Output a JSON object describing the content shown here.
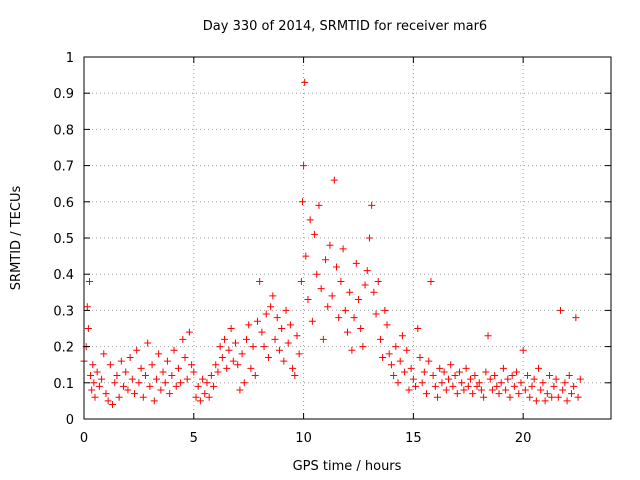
{
  "chart_data": {
    "type": "scatter",
    "title": "Day 330 of 2014, SRMTID for receiver mar6",
    "xlabel": "GPS time / hours",
    "ylabel": "SRMTID / TECUs",
    "xlim": [
      0,
      24
    ],
    "ylim": [
      0,
      1
    ],
    "xticks": [
      0,
      5,
      10,
      15,
      20
    ],
    "xtick_labels": [
      "0",
      "5",
      "10",
      "15",
      "20"
    ],
    "yticks": [
      0,
      0.1,
      0.2,
      0.3,
      0.4,
      0.5,
      0.6,
      0.7,
      0.8,
      0.9,
      1
    ],
    "ytick_labels": [
      "0",
      "0.1",
      "0.2",
      "0.3",
      "0.4",
      "0.5",
      "0.6",
      "0.7",
      "0.8",
      "0.9",
      "1"
    ],
    "grid": true,
    "marker": "+",
    "color": "#ff0000",
    "series": [
      {
        "name": "SRMTID",
        "x": [
          0.0,
          0.1,
          0.15,
          0.2,
          0.25,
          0.3,
          0.35,
          0.4,
          0.45,
          0.5,
          0.6,
          0.7,
          0.8,
          0.9,
          1.0,
          1.1,
          1.2,
          1.3,
          1.4,
          1.5,
          1.6,
          1.7,
          1.8,
          1.9,
          2.0,
          2.1,
          2.2,
          2.3,
          2.4,
          2.5,
          2.6,
          2.7,
          2.8,
          2.9,
          3.0,
          3.1,
          3.2,
          3.3,
          3.4,
          3.5,
          3.6,
          3.7,
          3.8,
          3.9,
          4.0,
          4.1,
          4.2,
          4.3,
          4.4,
          4.5,
          4.6,
          4.7,
          4.8,
          4.9,
          5.0,
          5.1,
          5.2,
          5.3,
          5.4,
          5.5,
          5.6,
          5.7,
          5.8,
          5.9,
          6.0,
          6.1,
          6.2,
          6.3,
          6.4,
          6.5,
          6.6,
          6.7,
          6.8,
          6.9,
          7.0,
          7.1,
          7.2,
          7.3,
          7.4,
          7.5,
          7.6,
          7.7,
          7.8,
          7.9,
          8.0,
          8.1,
          8.2,
          8.3,
          8.4,
          8.5,
          8.6,
          8.7,
          8.8,
          8.9,
          9.0,
          9.1,
          9.2,
          9.3,
          9.4,
          9.5,
          9.6,
          9.7,
          9.8,
          9.9,
          9.95,
          10.0,
          10.05,
          10.1,
          10.2,
          10.3,
          10.4,
          10.5,
          10.6,
          10.7,
          10.8,
          10.9,
          11.0,
          11.1,
          11.2,
          11.3,
          11.4,
          11.5,
          11.6,
          11.7,
          11.8,
          11.9,
          12.0,
          12.1,
          12.2,
          12.3,
          12.4,
          12.5,
          12.6,
          12.7,
          12.8,
          12.9,
          13.0,
          13.1,
          13.2,
          13.3,
          13.4,
          13.5,
          13.6,
          13.7,
          13.8,
          13.9,
          14.0,
          14.1,
          14.2,
          14.3,
          14.4,
          14.5,
          14.6,
          14.7,
          14.8,
          14.9,
          15.0,
          15.1,
          15.2,
          15.3,
          15.4,
          15.5,
          15.6,
          15.7,
          15.8,
          15.9,
          16.0,
          16.1,
          16.2,
          16.3,
          16.4,
          16.5,
          16.6,
          16.7,
          16.8,
          16.9,
          17.0,
          17.1,
          17.2,
          17.3,
          17.4,
          17.5,
          17.6,
          17.7,
          17.8,
          17.9,
          18.0,
          18.1,
          18.2,
          18.3,
          18.4,
          18.5,
          18.6,
          18.7,
          18.8,
          18.9,
          19.0,
          19.1,
          19.2,
          19.3,
          19.4,
          19.5,
          19.6,
          19.7,
          19.8,
          19.9,
          20.0,
          20.1,
          20.2,
          20.3,
          20.4,
          20.5,
          20.6,
          20.7,
          20.8,
          20.9,
          21.0,
          21.1,
          21.2,
          21.3,
          21.4,
          21.5,
          21.6,
          21.7,
          21.8,
          21.9,
          22.0,
          22.1,
          22.2,
          22.3,
          22.4,
          22.5,
          22.6
        ],
        "y": [
          0.16,
          0.2,
          0.31,
          0.25,
          0.38,
          0.12,
          0.08,
          0.15,
          0.1,
          0.06,
          0.13,
          0.09,
          0.11,
          0.18,
          0.07,
          0.05,
          0.15,
          0.04,
          0.1,
          0.12,
          0.06,
          0.16,
          0.09,
          0.13,
          0.08,
          0.17,
          0.11,
          0.07,
          0.19,
          0.1,
          0.14,
          0.06,
          0.12,
          0.21,
          0.09,
          0.15,
          0.05,
          0.11,
          0.18,
          0.08,
          0.13,
          0.1,
          0.16,
          0.07,
          0.12,
          0.19,
          0.09,
          0.14,
          0.1,
          0.22,
          0.17,
          0.11,
          0.24,
          0.15,
          0.13,
          0.06,
          0.09,
          0.05,
          0.11,
          0.07,
          0.1,
          0.06,
          0.12,
          0.09,
          0.15,
          0.13,
          0.2,
          0.17,
          0.22,
          0.14,
          0.19,
          0.25,
          0.16,
          0.21,
          0.15,
          0.08,
          0.18,
          0.1,
          0.22,
          0.26,
          0.14,
          0.2,
          0.12,
          0.27,
          0.38,
          0.24,
          0.2,
          0.29,
          0.17,
          0.31,
          0.34,
          0.22,
          0.28,
          0.19,
          0.25,
          0.16,
          0.3,
          0.21,
          0.26,
          0.14,
          0.12,
          0.23,
          0.18,
          0.38,
          0.6,
          0.7,
          0.93,
          0.45,
          0.33,
          0.55,
          0.27,
          0.51,
          0.4,
          0.59,
          0.36,
          0.22,
          0.44,
          0.31,
          0.48,
          0.34,
          0.66,
          0.42,
          0.28,
          0.38,
          0.47,
          0.3,
          0.24,
          0.35,
          0.19,
          0.28,
          0.43,
          0.33,
          0.25,
          0.2,
          0.37,
          0.41,
          0.5,
          0.59,
          0.35,
          0.29,
          0.38,
          0.22,
          0.17,
          0.3,
          0.26,
          0.18,
          0.15,
          0.12,
          0.2,
          0.1,
          0.16,
          0.23,
          0.13,
          0.19,
          0.08,
          0.14,
          0.11,
          0.09,
          0.25,
          0.17,
          0.1,
          0.13,
          0.07,
          0.16,
          0.38,
          0.12,
          0.09,
          0.06,
          0.14,
          0.1,
          0.13,
          0.08,
          0.11,
          0.15,
          0.09,
          0.12,
          0.07,
          0.13,
          0.1,
          0.08,
          0.14,
          0.09,
          0.11,
          0.07,
          0.12,
          0.09,
          0.1,
          0.08,
          0.06,
          0.13,
          0.23,
          0.11,
          0.08,
          0.12,
          0.09,
          0.07,
          0.1,
          0.14,
          0.08,
          0.11,
          0.06,
          0.12,
          0.09,
          0.13,
          0.07,
          0.1,
          0.19,
          0.08,
          0.12,
          0.06,
          0.09,
          0.11,
          0.05,
          0.14,
          0.08,
          0.1,
          0.05,
          0.07,
          0.12,
          0.06,
          0.09,
          0.11,
          0.06,
          0.3,
          0.08,
          0.1,
          0.05,
          0.12,
          0.07,
          0.09,
          0.28,
          0.06,
          0.11
        ]
      }
    ]
  }
}
